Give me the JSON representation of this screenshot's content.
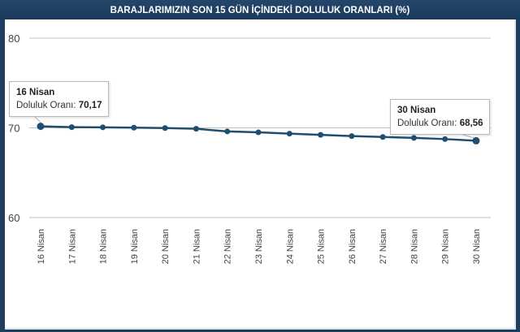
{
  "header": {
    "title": "BARAJLARIMIZIN SON 15 GÜN İÇİNDEKİ DOLULUK ORANLARI (%)"
  },
  "colors": {
    "frame": "#1f3d5c",
    "series": "#1f4e6e",
    "gridline": "#c0c0c0",
    "background": "#ffffff"
  },
  "tooltips": [
    {
      "date": "16 Nisan",
      "label": "Doluluk Oranı: ",
      "value": "70,17"
    },
    {
      "date": "30 Nisan",
      "label": "Doluluk Oranı: ",
      "value": "68,56"
    }
  ],
  "chart_data": {
    "type": "line",
    "title": "BARAJLARIMIZIN SON 15 GÜN İÇİNDEKİ DOLULUK ORANLARI (%)",
    "xlabel": "",
    "ylabel": "",
    "ylim": [
      60,
      80
    ],
    "yticks": [
      60,
      70,
      80
    ],
    "grid": true,
    "legend": false,
    "categories": [
      "16 Nisan",
      "17 Nisan",
      "18 Nisan",
      "19 Nisan",
      "20 Nisan",
      "21 Nisan",
      "22 Nisan",
      "23 Nisan",
      "24 Nisan",
      "25 Nisan",
      "26 Nisan",
      "27 Nisan",
      "28 Nisan",
      "29 Nisan",
      "30 Nisan"
    ],
    "series": [
      {
        "name": "Doluluk Oranı",
        "values": [
          70.17,
          70.08,
          70.06,
          70.02,
          69.98,
          69.9,
          69.6,
          69.5,
          69.35,
          69.22,
          69.08,
          68.98,
          68.88,
          68.75,
          68.56
        ]
      }
    ],
    "annotations": [
      {
        "x": "16 Nisan",
        "text": "16 Nisan / Doluluk Oranı: 70,17"
      },
      {
        "x": "30 Nisan",
        "text": "30 Nisan / Doluluk Oranı: 68,56"
      }
    ]
  }
}
